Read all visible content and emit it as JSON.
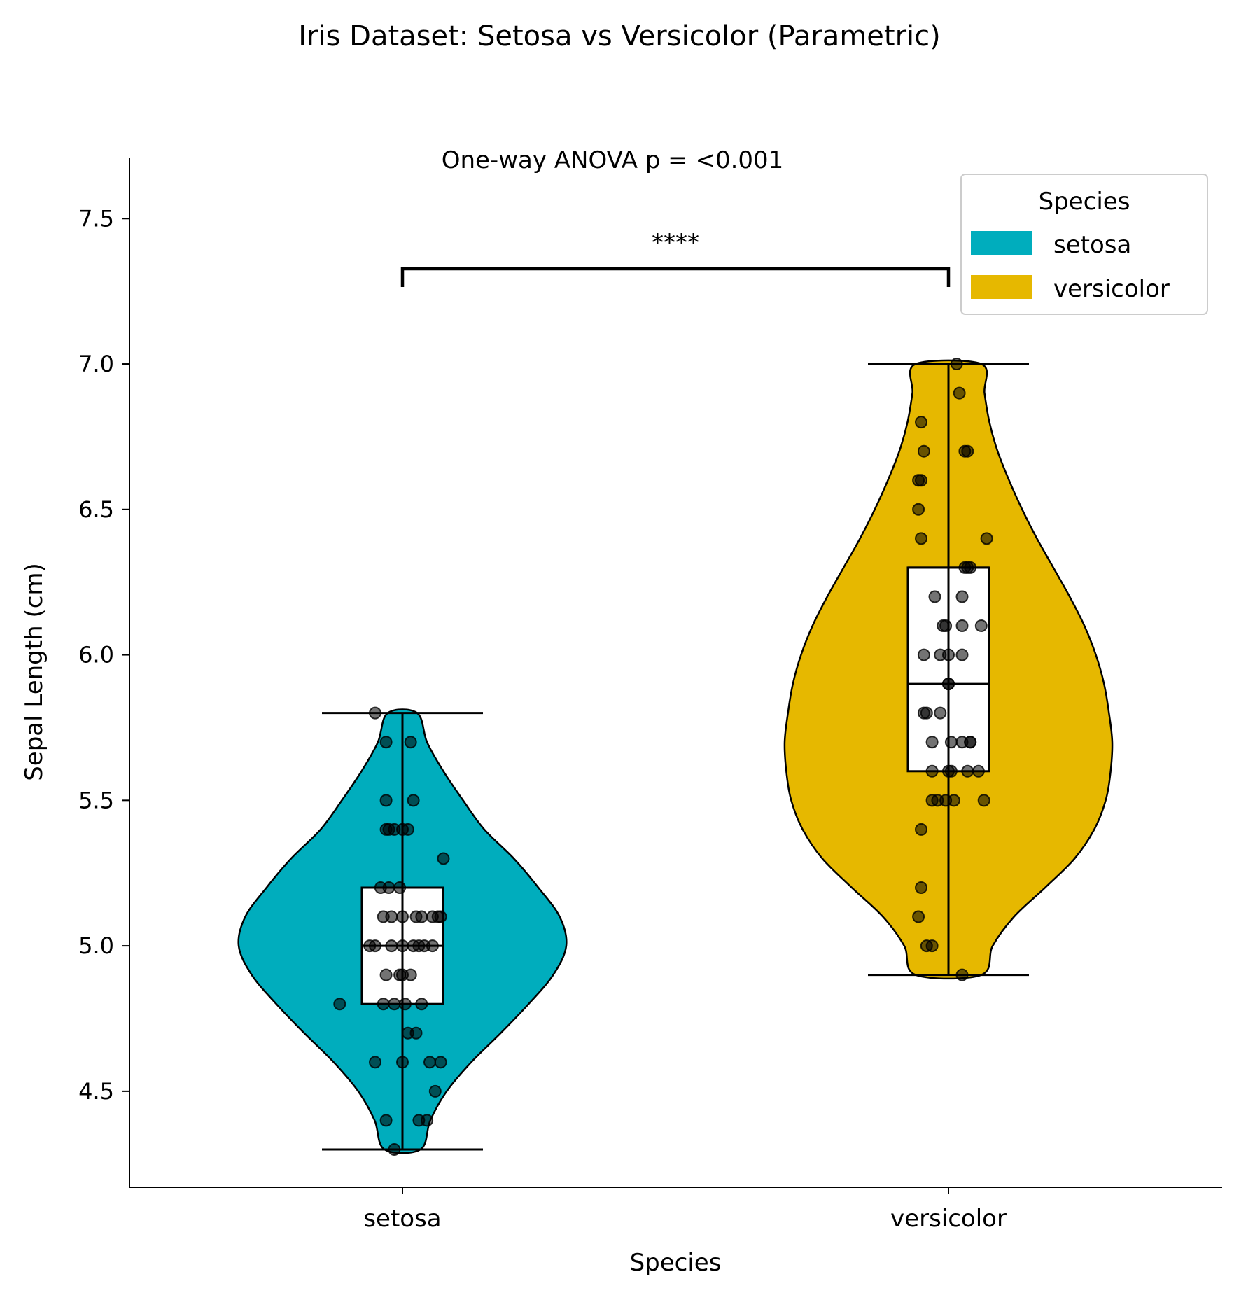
{
  "chart_data": {
    "type": "violin",
    "title": "Iris Dataset: Setosa vs Versicolor (Parametric)",
    "annotation": "One-way ANOVA p = <0.001",
    "significance_label": "****",
    "xlabel": "Species",
    "ylabel": "Sepal Length (cm)",
    "ylim": [
      4.17,
      7.71
    ],
    "yticks": [
      4.5,
      5.0,
      5.5,
      6.0,
      6.5,
      7.0,
      7.5
    ],
    "ytick_labels": [
      "4.5",
      "5.0",
      "5.5",
      "6.0",
      "6.5",
      "7.0",
      "7.5"
    ],
    "categories": [
      "setosa",
      "versicolor"
    ],
    "legend": {
      "title": "Species",
      "position": "top-right"
    },
    "grid": false,
    "series": [
      {
        "name": "setosa",
        "color": "#00ADBD",
        "min": 4.3,
        "q1": 4.8,
        "median": 5.0,
        "q3": 5.2,
        "max": 5.8,
        "density": [
          [
            4.3,
            0.11
          ],
          [
            4.4,
            0.17
          ],
          [
            4.5,
            0.27
          ],
          [
            4.6,
            0.42
          ],
          [
            4.7,
            0.6
          ],
          [
            4.8,
            0.77
          ],
          [
            4.9,
            0.92
          ],
          [
            5.0,
            1.0
          ],
          [
            5.1,
            0.96
          ],
          [
            5.2,
            0.83
          ],
          [
            5.3,
            0.68
          ],
          [
            5.4,
            0.5
          ],
          [
            5.5,
            0.37
          ],
          [
            5.6,
            0.25
          ],
          [
            5.7,
            0.15
          ],
          [
            5.8,
            0.09
          ]
        ],
        "points": [
          [
            5.1,
            0.07
          ],
          [
            4.9,
            -0.06
          ],
          [
            4.7,
            0.02
          ],
          [
            4.6,
            -0.1
          ],
          [
            5.0,
            0.0
          ],
          [
            5.4,
            -0.05
          ],
          [
            4.6,
            0.1
          ],
          [
            5.0,
            -0.12
          ],
          [
            4.4,
            0.09
          ],
          [
            4.9,
            0.03
          ],
          [
            5.4,
            0.02
          ],
          [
            4.8,
            -0.07
          ],
          [
            4.8,
            0.07
          ],
          [
            4.3,
            -0.03
          ],
          [
            5.8,
            -0.1
          ],
          [
            5.7,
            -0.06
          ],
          [
            5.4,
            -0.03
          ],
          [
            5.1,
            -0.04
          ],
          [
            5.7,
            0.03
          ],
          [
            5.1,
            0.11
          ],
          [
            5.4,
            0.0
          ],
          [
            5.1,
            0.05
          ],
          [
            4.6,
            0.0
          ],
          [
            5.1,
            0.13
          ],
          [
            4.8,
            -0.23
          ],
          [
            5.0,
            0.06
          ],
          [
            5.0,
            -0.1
          ],
          [
            5.2,
            -0.08
          ],
          [
            5.2,
            -0.01
          ],
          [
            4.7,
            0.05
          ],
          [
            4.8,
            -0.03
          ],
          [
            5.4,
            -0.06
          ],
          [
            5.2,
            -0.05
          ],
          [
            5.5,
            -0.06
          ],
          [
            4.9,
            0.0
          ],
          [
            5.0,
            0.08
          ],
          [
            5.5,
            0.04
          ],
          [
            4.9,
            -0.01
          ],
          [
            4.4,
            -0.06
          ],
          [
            5.1,
            0.0
          ],
          [
            5.0,
            0.04
          ],
          [
            4.5,
            0.12
          ],
          [
            4.4,
            0.06
          ],
          [
            5.0,
            -0.04
          ],
          [
            5.1,
            0.14
          ],
          [
            4.8,
            0.01
          ],
          [
            5.1,
            -0.07
          ],
          [
            4.6,
            0.14
          ],
          [
            5.3,
            0.15
          ],
          [
            5.0,
            0.11
          ]
        ]
      },
      {
        "name": "versicolor",
        "color": "#E6B800",
        "min": 4.9,
        "q1": 5.6,
        "median": 5.9,
        "q3": 6.3,
        "max": 7.0,
        "density": [
          [
            4.9,
            0.2
          ],
          [
            5.0,
            0.27
          ],
          [
            5.1,
            0.4
          ],
          [
            5.2,
            0.59
          ],
          [
            5.3,
            0.77
          ],
          [
            5.4,
            0.89
          ],
          [
            5.5,
            0.96
          ],
          [
            5.6,
            0.99
          ],
          [
            5.7,
            1.0
          ],
          [
            5.8,
            0.98
          ],
          [
            5.9,
            0.95
          ],
          [
            6.0,
            0.9
          ],
          [
            6.1,
            0.83
          ],
          [
            6.2,
            0.74
          ],
          [
            6.3,
            0.64
          ],
          [
            6.4,
            0.54
          ],
          [
            6.5,
            0.45
          ],
          [
            6.6,
            0.37
          ],
          [
            6.7,
            0.3
          ],
          [
            6.8,
            0.25
          ],
          [
            6.9,
            0.22
          ],
          [
            7.0,
            0.2
          ]
        ]
      }
    ]
  },
  "versicolor_points": [
    [
      7.0,
      0.03
    ],
    [
      6.4,
      0.14
    ],
    [
      6.9,
      0.04
    ],
    [
      5.5,
      0.13
    ],
    [
      6.5,
      -0.11
    ],
    [
      5.7,
      -0.06
    ],
    [
      6.3,
      0.08
    ],
    [
      4.9,
      0.05
    ],
    [
      6.6,
      -0.11
    ],
    [
      5.2,
      -0.1
    ],
    [
      5.0,
      -0.08
    ],
    [
      5.9,
      0.0
    ],
    [
      6.0,
      0.05
    ],
    [
      6.1,
      0.05
    ],
    [
      5.6,
      0.11
    ],
    [
      6.7,
      -0.09
    ],
    [
      5.6,
      -0.06
    ],
    [
      5.8,
      -0.03
    ],
    [
      6.2,
      0.05
    ],
    [
      5.6,
      0.0
    ],
    [
      5.9,
      0.0
    ],
    [
      6.1,
      -0.01
    ],
    [
      6.3,
      0.07
    ],
    [
      6.1,
      -0.02
    ],
    [
      6.4,
      -0.1
    ],
    [
      6.6,
      -0.1
    ],
    [
      6.8,
      -0.1
    ],
    [
      6.7,
      0.06
    ],
    [
      6.0,
      -0.09
    ],
    [
      5.7,
      0.05
    ],
    [
      5.5,
      -0.06
    ],
    [
      5.5,
      -0.01
    ],
    [
      5.8,
      -0.08
    ],
    [
      6.0,
      -0.03
    ],
    [
      5.4,
      -0.1
    ],
    [
      6.0,
      0.0
    ],
    [
      6.7,
      0.07
    ],
    [
      6.3,
      0.06
    ],
    [
      5.6,
      0.01
    ],
    [
      5.5,
      0.02
    ],
    [
      5.5,
      -0.04
    ],
    [
      6.1,
      0.12
    ],
    [
      5.8,
      -0.09
    ],
    [
      5.0,
      -0.06
    ],
    [
      5.6,
      0.07
    ],
    [
      5.7,
      0.08
    ],
    [
      5.7,
      0.01
    ],
    [
      6.2,
      -0.05
    ],
    [
      5.1,
      -0.11
    ],
    [
      5.7,
      0.08
    ]
  ]
}
